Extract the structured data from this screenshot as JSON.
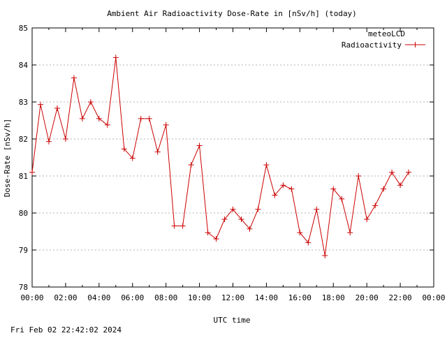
{
  "chart_data": {
    "type": "line",
    "title": "Ambient Air Radioactivity Dose-Rate in [nSv/h] (today)",
    "xlabel": "UTC time",
    "ylabel": "Dose-Rate [nSv/h]",
    "footer": "Fri Feb 02 22:42:02 2024",
    "legend": {
      "title": "meteoLCD",
      "placement": "top-right"
    },
    "xlim": [
      0,
      24
    ],
    "ylim": [
      78,
      85
    ],
    "grid": true,
    "x_tick_labels": [
      "00:00",
      "02:00",
      "04:00",
      "06:00",
      "08:00",
      "10:00",
      "12:00",
      "14:00",
      "16:00",
      "18:00",
      "20:00",
      "22:00",
      "00:00"
    ],
    "y_tick_labels": [
      "78",
      "79",
      "80",
      "81",
      "82",
      "83",
      "84",
      "85"
    ],
    "colors": {
      "series": "#cc0000",
      "grid": "#b0b0b0",
      "axis": "#000000"
    },
    "series": [
      {
        "name": "Radioactivity",
        "x": [
          0,
          0.5,
          1,
          1.5,
          2,
          2.5,
          3,
          3.5,
          4,
          4.5,
          5,
          5.5,
          6,
          6.5,
          7,
          7.5,
          8,
          8.5,
          9,
          9.5,
          10,
          10.5,
          11,
          11.5,
          12,
          12.5,
          13,
          13.5,
          14,
          14.5,
          15,
          15.5,
          16,
          16.5,
          17,
          17.5,
          18,
          18.5,
          19,
          19.5,
          20,
          20.5,
          21,
          21.5,
          22,
          22.5
        ],
        "values": [
          81.1,
          82.93,
          81.93,
          82.83,
          82.0,
          83.65,
          82.55,
          83.0,
          82.55,
          82.38,
          84.2,
          81.73,
          81.48,
          82.55,
          82.55,
          81.65,
          82.38,
          79.65,
          79.65,
          81.3,
          81.82,
          79.47,
          79.3,
          79.83,
          80.1,
          79.83,
          79.57,
          80.1,
          81.3,
          80.48,
          80.75,
          80.65,
          79.47,
          79.2,
          80.1,
          78.85,
          80.65,
          80.38,
          79.47,
          81.0,
          79.83,
          80.2,
          80.65,
          81.1,
          80.75,
          81.1
        ]
      }
    ]
  }
}
